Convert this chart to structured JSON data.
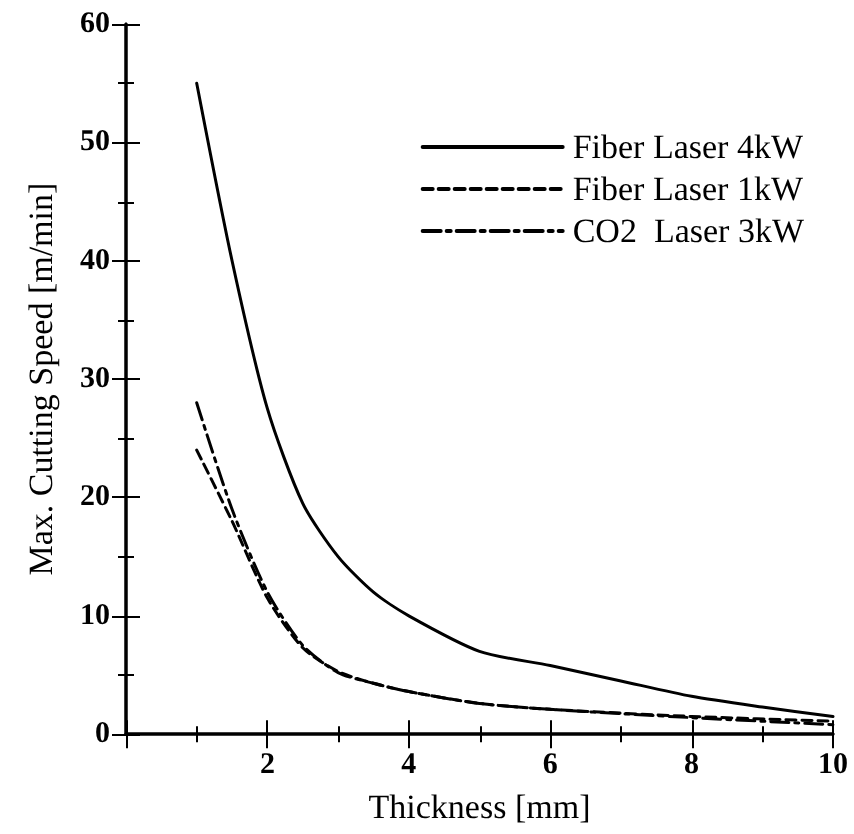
{
  "chart_data": {
    "type": "line",
    "xlabel": "Thickness [mm]",
    "ylabel": "Max. Cutting Speed [m/min]",
    "xlim": [
      0,
      10
    ],
    "ylim": [
      0,
      60
    ],
    "xticks": [
      {
        "value": 0,
        "label": null
      },
      2,
      4,
      6,
      8,
      10
    ],
    "yticks": [
      0,
      10,
      20,
      30,
      40,
      50,
      60
    ],
    "grid": false,
    "legend": "top right",
    "marker": "none",
    "series": [
      {
        "name": "Fiber Laser 4kW",
        "color": "#000000",
        "line_style": "solid",
        "x": [
          1,
          1.5,
          2,
          2.5,
          3,
          3.5,
          4,
          5,
          6,
          7,
          8,
          9,
          10
        ],
        "values": [
          55,
          40,
          27.5,
          19.5,
          15,
          12,
          10,
          7,
          5.8,
          4.5,
          3.2,
          2.3,
          1.5
        ]
      },
      {
        "name": "Fiber Laser 1kW",
        "color": "#000000",
        "line_style": "dashed",
        "x": [
          1,
          1.5,
          2,
          2.5,
          3,
          3.5,
          4,
          5,
          6,
          8,
          10
        ],
        "values": [
          24,
          18,
          11.5,
          7.3,
          5.3,
          4.3,
          3.6,
          2.6,
          2.1,
          1.5,
          1.1
        ]
      },
      {
        "name": "CO2  Laser 3kW",
        "color": "#000000",
        "line_style": "dashdot",
        "x": [
          1,
          1.5,
          2,
          2.5,
          3,
          3.5,
          4,
          5,
          6,
          8,
          10
        ],
        "values": [
          28,
          19,
          12,
          7.5,
          5.2,
          4.3,
          3.6,
          2.6,
          2.1,
          1.4,
          0.8
        ]
      }
    ]
  }
}
